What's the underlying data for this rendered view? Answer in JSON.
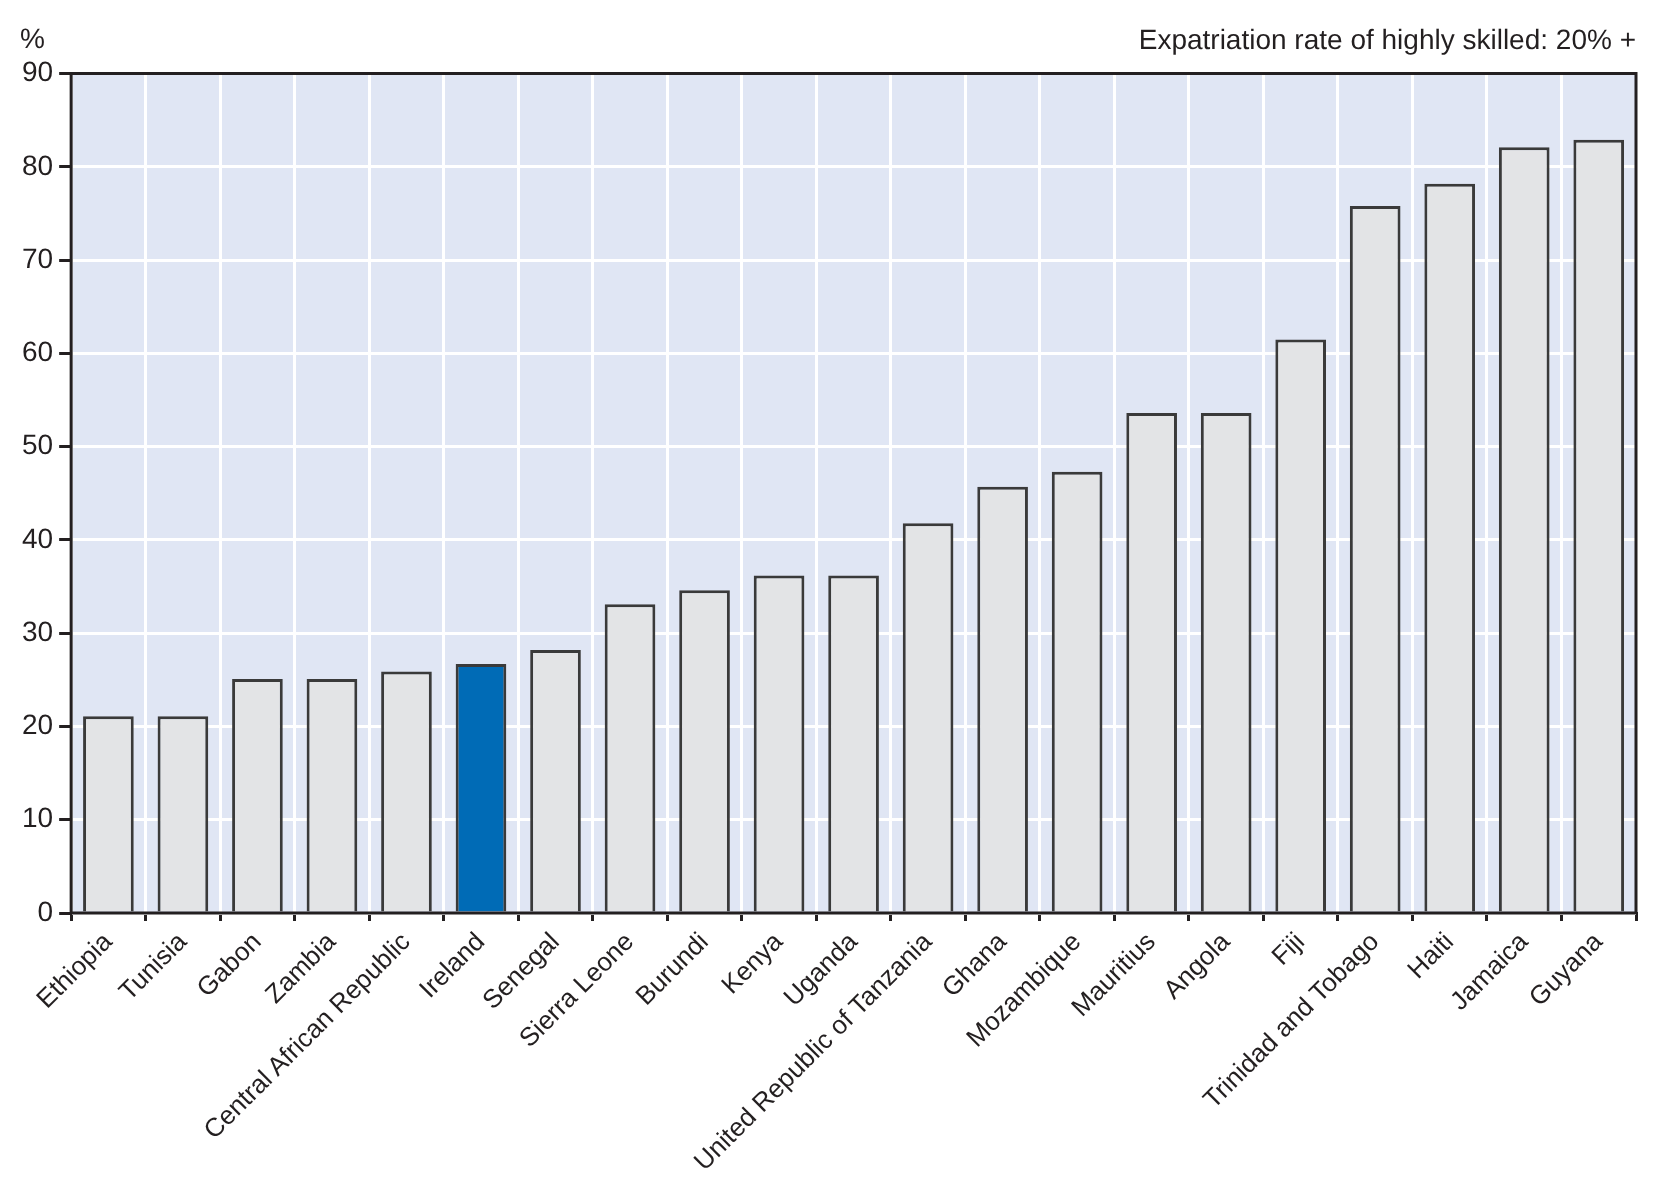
{
  "chart_data": {
    "type": "bar",
    "title": "Expatriation rate of highly skilled: 20% +",
    "ylabel": "%",
    "categories": [
      "Ethiopia",
      "Tunisia",
      "Gabon",
      "Zambia",
      "Central African Republic",
      "Ireland",
      "Senegal",
      "Sierra Leone",
      "Burundi",
      "Kenya",
      "Uganda",
      "United Republic of Tanzania",
      "Ghana",
      "Mozambique",
      "Mauritius",
      "Angola",
      "Fiji",
      "Trinidad and Tobago",
      "Haiti",
      "Jamaica",
      "Guyana"
    ],
    "values": [
      21.1,
      21.1,
      25.1,
      25.1,
      25.9,
      26.7,
      28.2,
      33.1,
      34.6,
      36.2,
      36.2,
      41.8,
      45.7,
      47.3,
      53.6,
      53.6,
      61.5,
      75.8,
      78.2,
      82.1,
      82.9
    ],
    "colors": [
      "#e3e4e6",
      "#e3e4e6",
      "#e3e4e6",
      "#e3e4e6",
      "#e3e4e6",
      "#006bb6",
      "#e3e4e6",
      "#e3e4e6",
      "#e3e4e6",
      "#e3e4e6",
      "#e3e4e6",
      "#e3e4e6",
      "#e3e4e6",
      "#e3e4e6",
      "#e3e4e6",
      "#e3e4e6",
      "#e3e4e6",
      "#e3e4e6",
      "#e3e4e6",
      "#e3e4e6",
      "#e3e4e6"
    ],
    "ylim": [
      0,
      90
    ],
    "yticks": [
      0,
      10,
      20,
      30,
      40,
      50,
      60,
      70,
      80,
      90
    ],
    "grid": true,
    "legend": false
  }
}
